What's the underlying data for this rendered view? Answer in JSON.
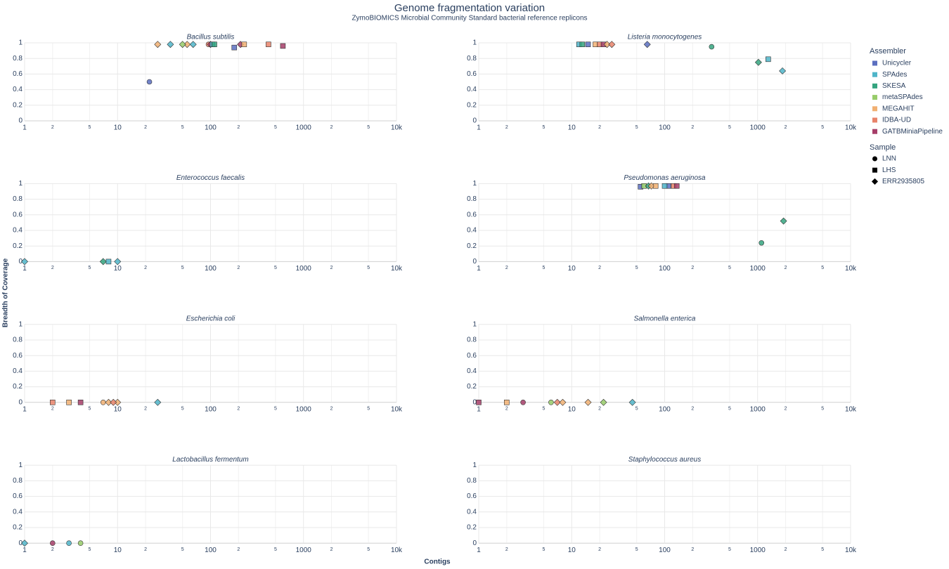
{
  "title": "Genome fragmentation variation",
  "subtitle": "ZymoBIOMICS Microbial Community Standard bacterial reference replicons",
  "x_label": "Contigs",
  "y_label": "Breadth of Coverage",
  "axes": {
    "xscale": "log",
    "xlim": [
      1,
      10000
    ],
    "xticks": [
      1,
      10,
      100,
      1000,
      {
        "value": 10000,
        "label": "10k"
      }
    ],
    "xminor_ticks": [
      {
        "value": 2,
        "label": "2"
      },
      {
        "value": 5,
        "label": "5"
      },
      {
        "value": 20,
        "label": "2"
      },
      {
        "value": 50,
        "label": "5"
      },
      {
        "value": 200,
        "label": "2"
      },
      {
        "value": 500,
        "label": "5"
      },
      {
        "value": 2000,
        "label": "2"
      },
      {
        "value": 5000,
        "label": "5"
      }
    ],
    "ylim": [
      0,
      1
    ],
    "yticks": [
      0,
      0.2,
      0.4,
      0.6,
      0.8,
      1
    ],
    "grid": true
  },
  "legend": {
    "assembler_title": "Assembler",
    "assemblers": [
      {
        "name": "Unicycler",
        "color": "#5b6fc0"
      },
      {
        "name": "SPAdes",
        "color": "#4fb5c9"
      },
      {
        "name": "SKESA",
        "color": "#35a47f"
      },
      {
        "name": "metaSPAdes",
        "color": "#98cc6a"
      },
      {
        "name": "MEGAHIT",
        "color": "#f1b072"
      },
      {
        "name": "IDBA-UD",
        "color": "#e8836a"
      },
      {
        "name": "GATBMiniaPipeline",
        "color": "#a63e69"
      }
    ],
    "sample_title": "Sample",
    "samples": [
      {
        "name": "LNN",
        "symbol": "circle"
      },
      {
        "name": "LHS",
        "symbol": "square"
      },
      {
        "name": "ERR2935805",
        "symbol": "diamond"
      }
    ]
  },
  "chart_data": [
    {
      "type": "scatter",
      "title": "Bacillus subtilis",
      "series": [
        {
          "assembler": "Unicycler",
          "sample": "LNN",
          "x": [
            22
          ],
          "values": [
            0.5
          ]
        },
        {
          "assembler": "MEGAHIT",
          "sample": "ERR2935805",
          "x": [
            27,
            56
          ],
          "values": [
            0.98,
            0.98
          ]
        },
        {
          "assembler": "SPAdes",
          "sample": "ERR2935805",
          "x": [
            37,
            65
          ],
          "values": [
            0.98,
            0.98
          ]
        },
        {
          "assembler": "metaSPAdes",
          "sample": "ERR2935805",
          "x": [
            50
          ],
          "values": [
            0.98
          ]
        },
        {
          "assembler": "IDBA-UD",
          "sample": "LNN",
          "x": [
            95
          ],
          "values": [
            0.98
          ]
        },
        {
          "assembler": "GATBMiniaPipeline",
          "sample": "ERR2935805",
          "x": [
            100,
            210
          ],
          "values": [
            0.98,
            0.98
          ]
        },
        {
          "assembler": "SPAdes",
          "sample": "LHS",
          "x": [
            105
          ],
          "values": [
            0.98
          ]
        },
        {
          "assembler": "SKESA",
          "sample": "LHS",
          "x": [
            110
          ],
          "values": [
            0.98
          ]
        },
        {
          "assembler": "Unicycler",
          "sample": "LHS",
          "x": [
            180
          ],
          "values": [
            0.94
          ]
        },
        {
          "assembler": "MEGAHIT",
          "sample": "LHS",
          "x": [
            230
          ],
          "values": [
            0.98
          ]
        },
        {
          "assembler": "IDBA-UD",
          "sample": "LHS",
          "x": [
            420
          ],
          "values": [
            0.98
          ]
        },
        {
          "assembler": "GATBMiniaPipeline",
          "sample": "LHS",
          "x": [
            600
          ],
          "values": [
            0.96
          ]
        }
      ]
    },
    {
      "type": "scatter",
      "title": "Listeria monocytogenes",
      "series": [
        {
          "assembler": "SPAdes",
          "sample": "LHS",
          "x": [
            12,
            1300
          ],
          "values": [
            0.98,
            0.79
          ]
        },
        {
          "assembler": "SKESA",
          "sample": "LHS",
          "x": [
            13
          ],
          "values": [
            0.98
          ]
        },
        {
          "assembler": "Unicycler",
          "sample": "LHS",
          "x": [
            15
          ],
          "values": [
            0.98
          ]
        },
        {
          "assembler": "MEGAHIT",
          "sample": "LHS",
          "x": [
            18
          ],
          "values": [
            0.98
          ]
        },
        {
          "assembler": "IDBA-UD",
          "sample": "LHS",
          "x": [
            20
          ],
          "values": [
            0.98
          ]
        },
        {
          "assembler": "GATBMiniaPipeline",
          "sample": "LHS",
          "x": [
            22
          ],
          "values": [
            0.98
          ]
        },
        {
          "assembler": "MEGAHIT",
          "sample": "ERR2935805",
          "x": [
            24
          ],
          "values": [
            0.98
          ]
        },
        {
          "assembler": "IDBA-UD",
          "sample": "ERR2935805",
          "x": [
            27
          ],
          "values": [
            0.98
          ]
        },
        {
          "assembler": "Unicycler",
          "sample": "ERR2935805",
          "x": [
            65
          ],
          "values": [
            0.98
          ]
        },
        {
          "assembler": "SKESA",
          "sample": "LNN",
          "x": [
            320
          ],
          "values": [
            0.95
          ]
        },
        {
          "assembler": "SKESA",
          "sample": "ERR2935805",
          "x": [
            1020
          ],
          "values": [
            0.75
          ]
        },
        {
          "assembler": "SPAdes",
          "sample": "ERR2935805",
          "x": [
            1850
          ],
          "values": [
            0.64
          ]
        }
      ]
    },
    {
      "type": "scatter",
      "title": "Enterococcus faecalis",
      "series": [
        {
          "assembler": "SPAdes",
          "sample": "ERR2935805",
          "x": [
            1,
            10
          ],
          "values": [
            0,
            0
          ]
        },
        {
          "assembler": "SKESA",
          "sample": "ERR2935805",
          "x": [
            7
          ],
          "values": [
            0
          ]
        },
        {
          "assembler": "SPAdes",
          "sample": "LHS",
          "x": [
            8
          ],
          "values": [
            0
          ]
        }
      ]
    },
    {
      "type": "scatter",
      "title": "Pseudomonas aeruginosa",
      "series": [
        {
          "assembler": "Unicycler",
          "sample": "LHS",
          "x": [
            55,
            110
          ],
          "values": [
            0.96,
            0.97
          ]
        },
        {
          "assembler": "metaSPAdes",
          "sample": "LHS",
          "x": [
            60
          ],
          "values": [
            0.97
          ]
        },
        {
          "assembler": "SKESA",
          "sample": "ERR2935805",
          "x": [
            67,
            1900
          ],
          "values": [
            0.97,
            0.52
          ]
        },
        {
          "assembler": "MEGAHIT",
          "sample": "ERR2935805",
          "x": [
            72
          ],
          "values": [
            0.97
          ]
        },
        {
          "assembler": "MEGAHIT",
          "sample": "LHS",
          "x": [
            80
          ],
          "values": [
            0.97
          ]
        },
        {
          "assembler": "SPAdes",
          "sample": "LHS",
          "x": [
            100
          ],
          "values": [
            0.97
          ]
        },
        {
          "assembler": "IDBA-UD",
          "sample": "LHS",
          "x": [
            125
          ],
          "values": [
            0.97
          ]
        },
        {
          "assembler": "GATBMiniaPipeline",
          "sample": "LHS",
          "x": [
            135
          ],
          "values": [
            0.97
          ]
        },
        {
          "assembler": "SKESA",
          "sample": "LNN",
          "x": [
            1100
          ],
          "values": [
            0.24
          ]
        }
      ]
    },
    {
      "type": "scatter",
      "title": "Escherichia coli",
      "series": [
        {
          "assembler": "IDBA-UD",
          "sample": "LHS",
          "x": [
            2
          ],
          "values": [
            0
          ]
        },
        {
          "assembler": "MEGAHIT",
          "sample": "LHS",
          "x": [
            3
          ],
          "values": [
            0
          ]
        },
        {
          "assembler": "GATBMiniaPipeline",
          "sample": "LHS",
          "x": [
            4
          ],
          "values": [
            0
          ]
        },
        {
          "assembler": "MEGAHIT",
          "sample": "LNN",
          "x": [
            7
          ],
          "values": [
            0
          ]
        },
        {
          "assembler": "MEGAHIT",
          "sample": "ERR2935805",
          "x": [
            8,
            10
          ],
          "values": [
            0,
            0
          ]
        },
        {
          "assembler": "IDBA-UD",
          "sample": "ERR2935805",
          "x": [
            9
          ],
          "values": [
            0
          ]
        },
        {
          "assembler": "SPAdes",
          "sample": "ERR2935805",
          "x": [
            27
          ],
          "values": [
            0
          ]
        }
      ]
    },
    {
      "type": "scatter",
      "title": "Salmonella enterica",
      "series": [
        {
          "assembler": "GATBMiniaPipeline",
          "sample": "LHS",
          "x": [
            1
          ],
          "values": [
            0
          ]
        },
        {
          "assembler": "MEGAHIT",
          "sample": "LHS",
          "x": [
            2
          ],
          "values": [
            0
          ]
        },
        {
          "assembler": "GATBMiniaPipeline",
          "sample": "LNN",
          "x": [
            3
          ],
          "values": [
            0
          ]
        },
        {
          "assembler": "metaSPAdes",
          "sample": "LNN",
          "x": [
            6
          ],
          "values": [
            0
          ]
        },
        {
          "assembler": "IDBA-UD",
          "sample": "ERR2935805",
          "x": [
            7
          ],
          "values": [
            0
          ]
        },
        {
          "assembler": "MEGAHIT",
          "sample": "ERR2935805",
          "x": [
            8,
            15
          ],
          "values": [
            0,
            0
          ]
        },
        {
          "assembler": "metaSPAdes",
          "sample": "ERR2935805",
          "x": [
            22
          ],
          "values": [
            0
          ]
        },
        {
          "assembler": "SPAdes",
          "sample": "ERR2935805",
          "x": [
            45
          ],
          "values": [
            0
          ]
        }
      ]
    },
    {
      "type": "scatter",
      "title": "Lactobacillus fermentum",
      "series": [
        {
          "assembler": "SPAdes",
          "sample": "ERR2935805",
          "x": [
            1
          ],
          "values": [
            0
          ]
        },
        {
          "assembler": "GATBMiniaPipeline",
          "sample": "LNN",
          "x": [
            2
          ],
          "values": [
            0
          ]
        },
        {
          "assembler": "SPAdes",
          "sample": "LNN",
          "x": [
            3
          ],
          "values": [
            0
          ]
        },
        {
          "assembler": "metaSPAdes",
          "sample": "LNN",
          "x": [
            4
          ],
          "values": [
            0
          ]
        }
      ]
    },
    {
      "type": "scatter",
      "title": "Staphylococcus aureus",
      "series": []
    }
  ]
}
